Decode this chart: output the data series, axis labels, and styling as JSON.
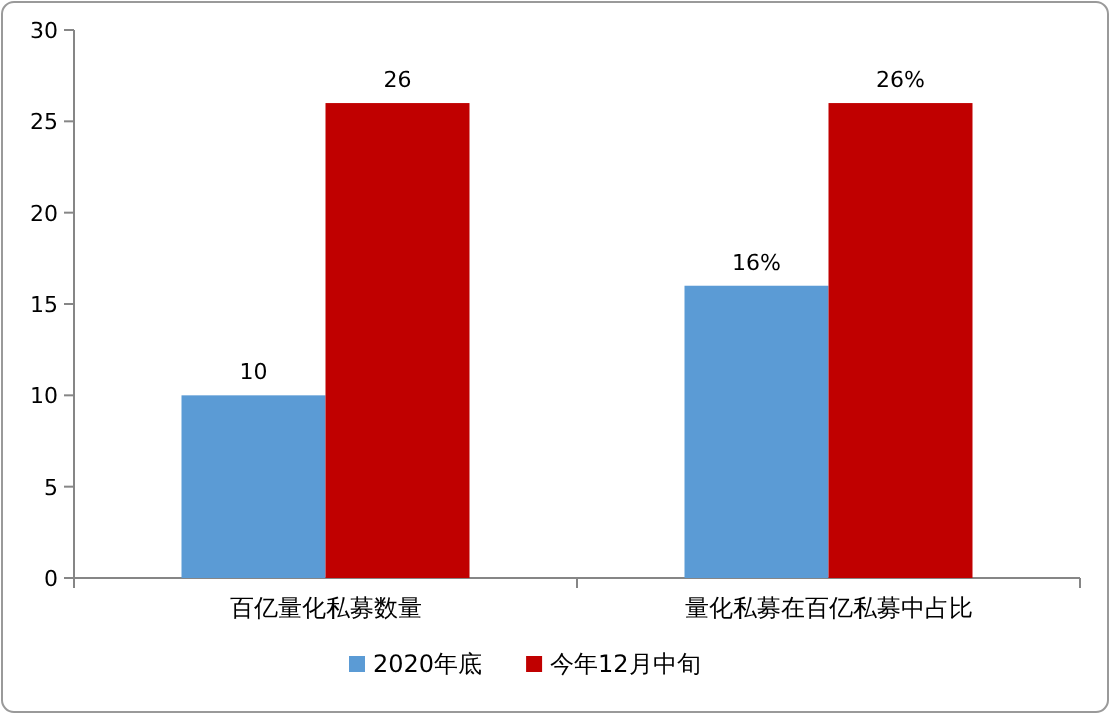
{
  "chart_data": {
    "type": "bar",
    "categories": [
      "百亿量化私募数量",
      "量化私募在百亿私募中占比"
    ],
    "series": [
      {
        "name": "2020年底",
        "color": "#5b9bd5",
        "values": [
          10,
          16
        ],
        "value_labels": [
          "10",
          "16%"
        ]
      },
      {
        "name": "今年12月中旬",
        "color": "#c00000",
        "values": [
          26,
          26
        ],
        "value_labels": [
          "26",
          "26%"
        ]
      }
    ],
    "ylim": [
      0,
      30
    ],
    "yticks": [
      0,
      5,
      10,
      15,
      20,
      25,
      30
    ],
    "legend": "bottom"
  }
}
